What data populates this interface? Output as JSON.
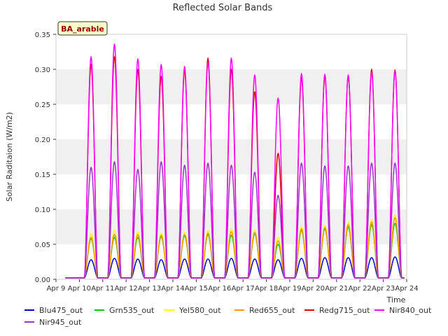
{
  "chart_data": {
    "type": "line",
    "title": "Reflected Solar Bands",
    "xlabel": "Time",
    "ylabel": "Solar Raditaion (W/m2)",
    "site_label": "BA_arable",
    "ylim": [
      0.0,
      0.35
    ],
    "yticks": [
      "0.00",
      "0.05",
      "0.10",
      "0.15",
      "0.20",
      "0.25",
      "0.30",
      "0.35"
    ],
    "xticks": [
      "Apr 9",
      "Apr 10",
      "Apr 11",
      "Apr 12",
      "Apr 13",
      "Apr 14",
      "Apr 15",
      "Apr 16",
      "Apr 17",
      "Apr 18",
      "Apr 19",
      "Apr 20",
      "Apr 21",
      "Apr 22",
      "Apr 23",
      "Apr 24"
    ],
    "xlim_days": [
      "Apr 9",
      "Apr 24"
    ],
    "grid": "horizontal bands",
    "legend_placement": "bottom",
    "day_centers": [
      "Apr 10 12:00",
      "Apr 11 12:00",
      "Apr 12 12:00",
      "Apr 13 12:00",
      "Apr 14 12:00",
      "Apr 15 12:00",
      "Apr 16 12:00",
      "Apr 17 12:00",
      "Apr 18 12:00",
      "Apr 19 12:00",
      "Apr 20 12:00",
      "Apr 21 12:00",
      "Apr 22 12:00",
      "Apr 23 12:00"
    ],
    "series": [
      {
        "name": "Blu475_out",
        "color": "#0000cc",
        "daily_peaks": [
          0.028,
          0.03,
          0.029,
          0.028,
          0.029,
          0.029,
          0.03,
          0.029,
          0.028,
          0.03,
          0.031,
          0.031,
          0.031,
          0.032
        ]
      },
      {
        "name": "Grn535_out",
        "color": "#00cc00",
        "daily_peaks": [
          0.058,
          0.06,
          0.06,
          0.061,
          0.062,
          0.064,
          0.063,
          0.065,
          0.05,
          0.07,
          0.072,
          0.075,
          0.078,
          0.08
        ]
      },
      {
        "name": "Yel580_out",
        "color": "#ffff00",
        "daily_peaks": [
          0.065,
          0.07,
          0.068,
          0.066,
          0.067,
          0.069,
          0.072,
          0.07,
          0.06,
          0.075,
          0.077,
          0.081,
          0.085,
          0.092
        ]
      },
      {
        "name": "Red655_out",
        "color": "#ff9900",
        "daily_peaks": [
          0.06,
          0.064,
          0.064,
          0.063,
          0.064,
          0.066,
          0.068,
          0.067,
          0.055,
          0.072,
          0.074,
          0.078,
          0.082,
          0.088
        ]
      },
      {
        "name": "Redg715_out",
        "color": "#dd0000",
        "daily_peaks": [
          0.307,
          0.318,
          0.3,
          0.29,
          0.298,
          0.316,
          0.3,
          0.268,
          0.18,
          0.288,
          0.29,
          0.29,
          0.3,
          0.299
        ]
      },
      {
        "name": "Nir840_out",
        "color": "#ff00ff",
        "daily_peaks": [
          0.318,
          0.336,
          0.315,
          0.307,
          0.304,
          0.31,
          0.316,
          0.292,
          0.259,
          0.294,
          0.293,
          0.292,
          0.296,
          0.297
        ]
      },
      {
        "name": "Nir945_out",
        "color": "#9933cc",
        "daily_peaks": [
          0.16,
          0.168,
          0.157,
          0.168,
          0.163,
          0.166,
          0.163,
          0.153,
          0.12,
          0.166,
          0.162,
          0.162,
          0.166,
          0.166
        ]
      }
    ]
  }
}
